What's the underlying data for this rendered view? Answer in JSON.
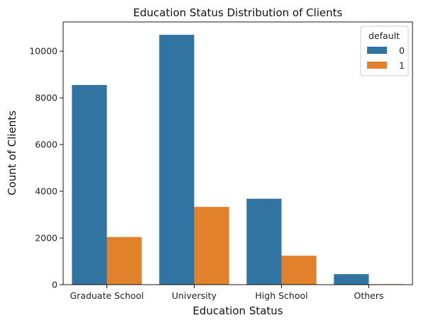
{
  "chart_data": {
    "type": "bar",
    "title": "Education Status Distribution of Clients",
    "xlabel": "Education Status",
    "ylabel": "Count of Clients",
    "categories": [
      "Graduate School",
      "University",
      "High School",
      "Others"
    ],
    "series": [
      {
        "name": "0",
        "values": [
          8550,
          10700,
          3680,
          450
        ],
        "color": "#3274a1"
      },
      {
        "name": "1",
        "values": [
          2040,
          3330,
          1240,
          20
        ],
        "color": "#e1812c"
      }
    ],
    "ylim": [
      0,
      11250
    ],
    "yticks": [
      0,
      2000,
      4000,
      6000,
      8000,
      10000
    ],
    "ytick_labels": [
      "0",
      "2000",
      "4000",
      "6000",
      "8000",
      "10000"
    ],
    "grid": false,
    "legend": {
      "title": "default",
      "placement": "upper-right"
    }
  }
}
